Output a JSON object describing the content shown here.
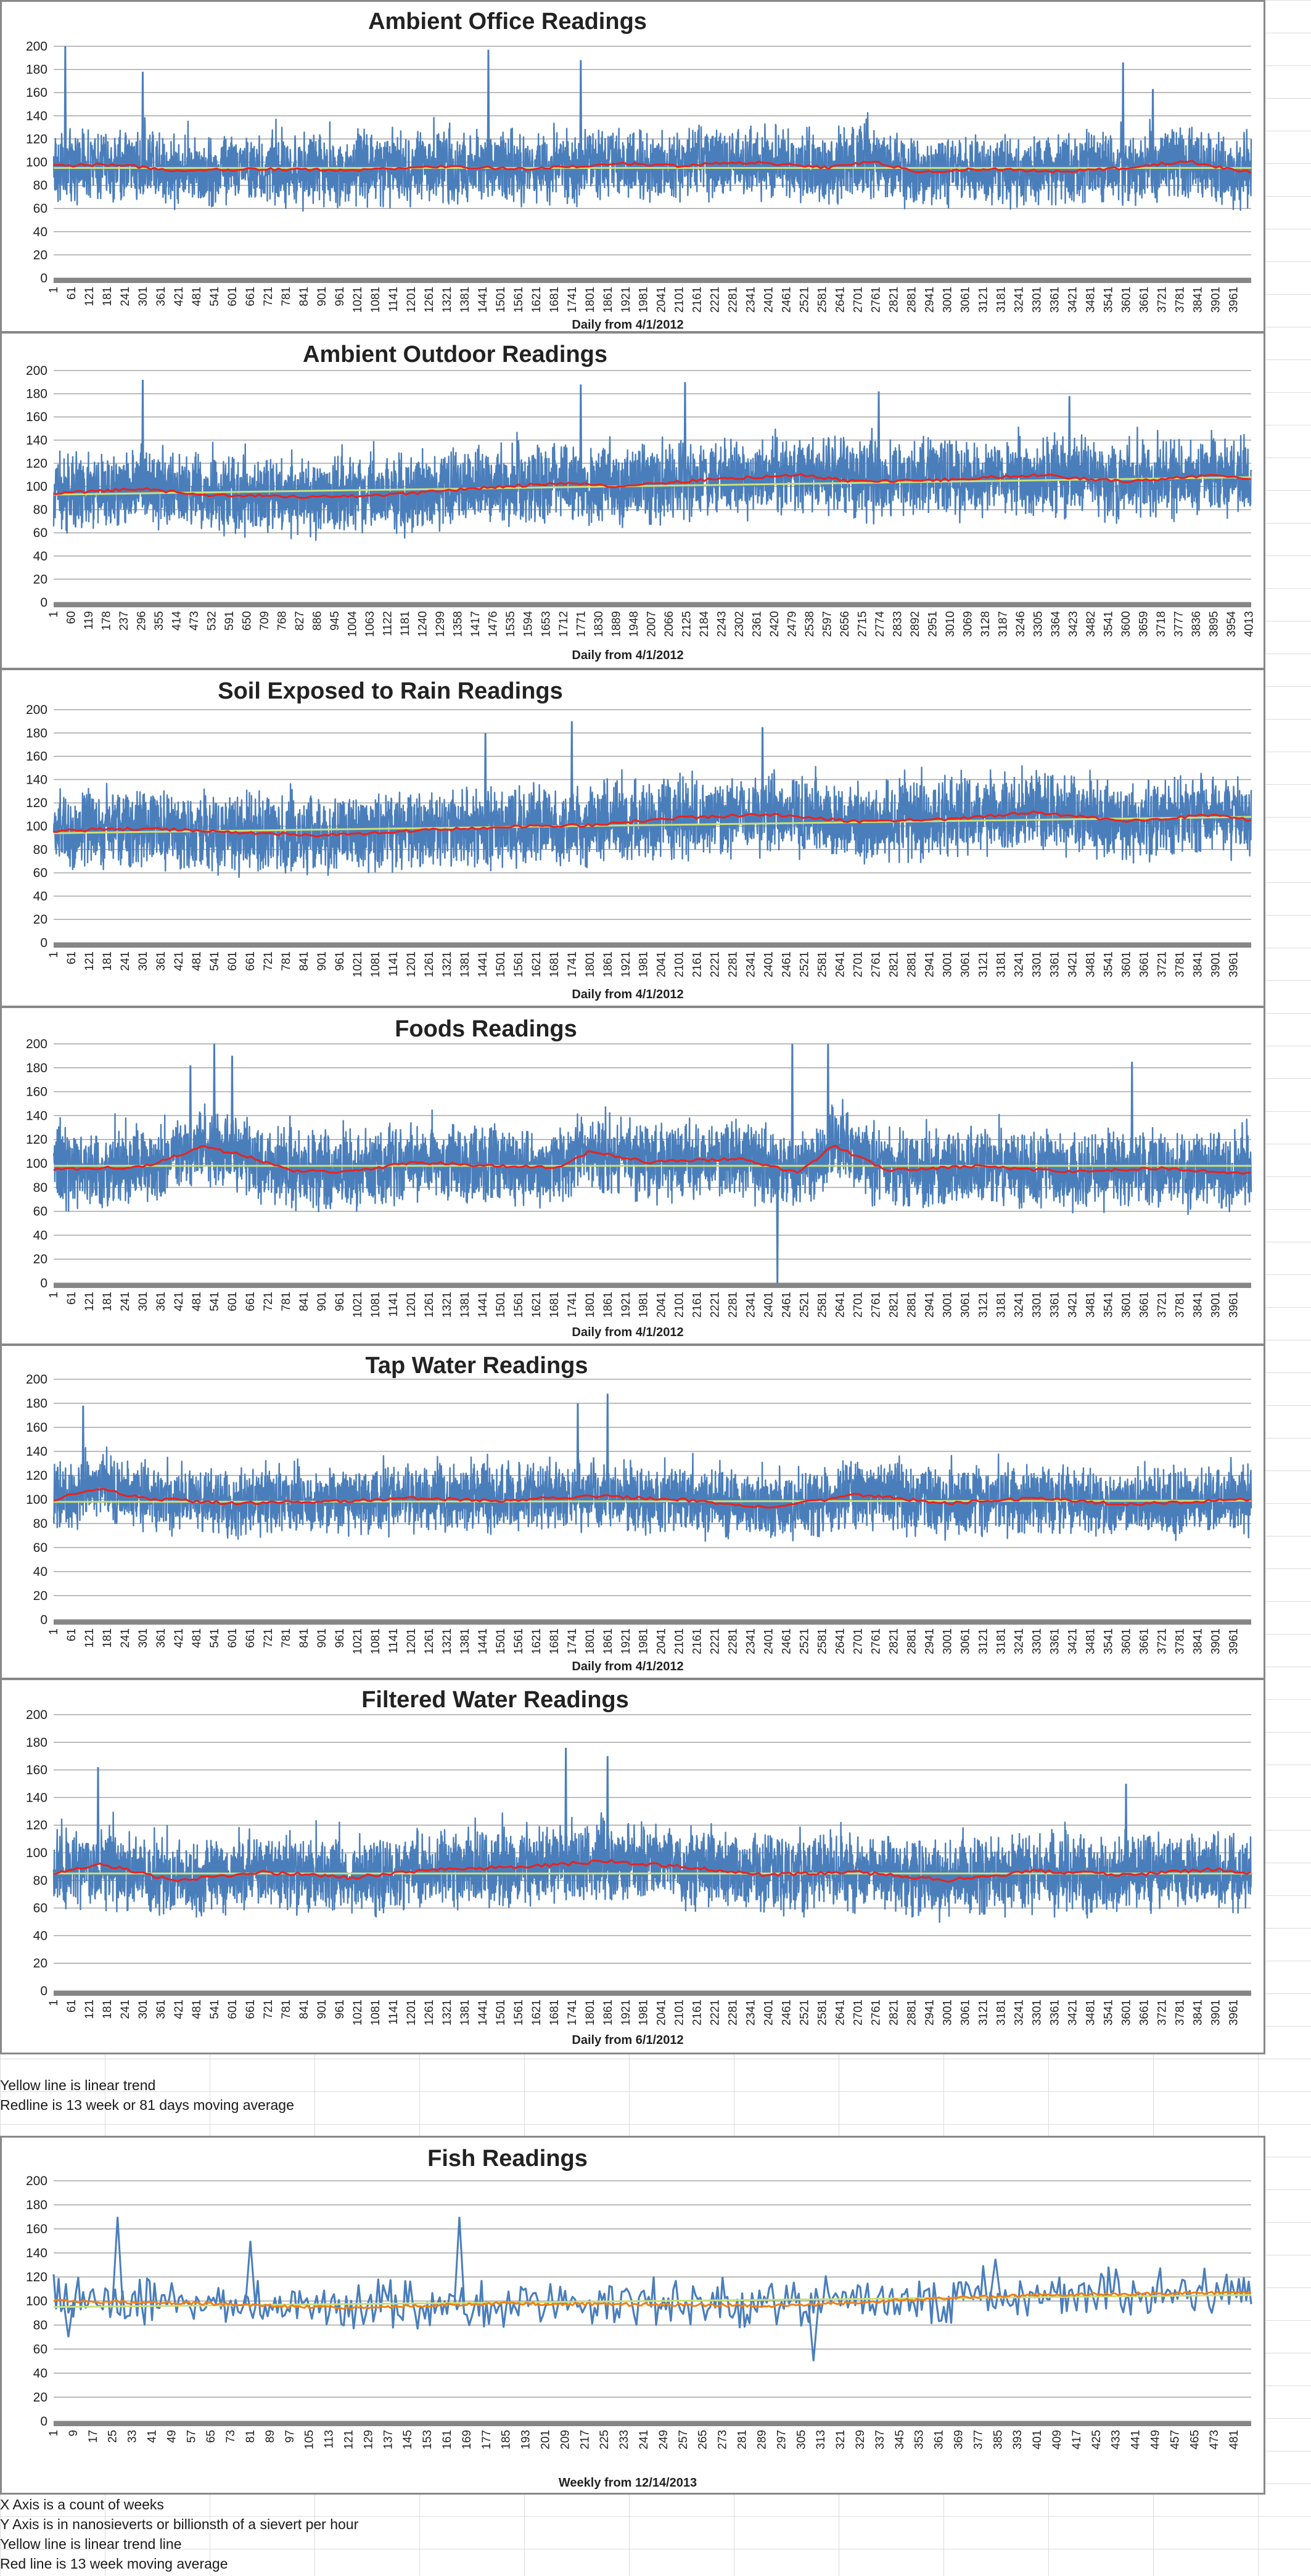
{
  "colors": {
    "series": "#4a7ebb",
    "moving_average": "#e8231f",
    "fish_moving_average": "#f08018",
    "trend": "#c9e07a",
    "grid": "#a6a6a6",
    "axis": "#868686"
  },
  "chart_data": [
    {
      "type": "line",
      "title": "Ambient Office Readings",
      "xlabel": "Daily from 4/1/2012",
      "ylim": [
        0,
        200
      ],
      "yticks": [
        0,
        20,
        40,
        60,
        80,
        100,
        120,
        140,
        160,
        180,
        200
      ],
      "n_points": 4020,
      "x_tick_start": 1,
      "x_tick_step": 60,
      "series_profile": {
        "mean": 95,
        "amplitude": 24,
        "spikes": [
          [
            40,
            200
          ],
          [
            300,
            178
          ],
          [
            1460,
            197
          ],
          [
            1770,
            188
          ],
          [
            3590,
            186
          ],
          [
            3690,
            163
          ]
        ]
      },
      "moving_average": [
        [
          1,
          97
        ],
        [
          200,
          98
        ],
        [
          400,
          93
        ],
        [
          700,
          94
        ],
        [
          1000,
          93
        ],
        [
          1300,
          96
        ],
        [
          1600,
          94
        ],
        [
          1900,
          99
        ],
        [
          2100,
          97
        ],
        [
          2350,
          100
        ],
        [
          2600,
          95
        ],
        [
          2750,
          101
        ],
        [
          2900,
          91
        ],
        [
          3100,
          94
        ],
        [
          3400,
          92
        ],
        [
          3600,
          95
        ],
        [
          3800,
          101
        ],
        [
          4020,
          91
        ]
      ],
      "trend": [
        [
          1,
          95
        ],
        [
          4020,
          95
        ]
      ]
    },
    {
      "type": "line",
      "title": "Ambient Outdoor Readings",
      "xlabel": "Daily from 4/1/2012",
      "ylim": [
        0,
        200
      ],
      "yticks": [
        0,
        20,
        40,
        60,
        80,
        100,
        120,
        140,
        160,
        180,
        200
      ],
      "n_points": 4020,
      "x_tick_start": 1,
      "x_tick_step": 59,
      "series_profile": {
        "mean": 100,
        "amplitude": 26,
        "spikes": [
          [
            300,
            192
          ],
          [
            1770,
            188
          ],
          [
            2120,
            190
          ],
          [
            2770,
            182
          ],
          [
            3410,
            178
          ]
        ]
      },
      "moving_average": [
        [
          1,
          94
        ],
        [
          300,
          98
        ],
        [
          500,
          93
        ],
        [
          800,
          91
        ],
        [
          1100,
          92
        ],
        [
          1400,
          98
        ],
        [
          1700,
          103
        ],
        [
          1900,
          100
        ],
        [
          2200,
          106
        ],
        [
          2500,
          110
        ],
        [
          2700,
          104
        ],
        [
          3000,
          106
        ],
        [
          3300,
          110
        ],
        [
          3600,
          104
        ],
        [
          3900,
          110
        ],
        [
          4020,
          107
        ]
      ],
      "trend": [
        [
          1,
          93
        ],
        [
          4020,
          108
        ]
      ]
    },
    {
      "type": "line",
      "title": "Soil Exposed to Rain Readings",
      "xlabel": "Daily from 4/1/2012",
      "ylim": [
        0,
        200
      ],
      "yticks": [
        0,
        20,
        40,
        60,
        80,
        100,
        120,
        140,
        160,
        180,
        200
      ],
      "n_points": 4020,
      "x_tick_start": 1,
      "x_tick_step": 60,
      "series_profile": {
        "mean": 100,
        "amplitude": 26,
        "spikes": [
          [
            1740,
            190
          ],
          [
            2380,
            185
          ],
          [
            1450,
            180
          ]
        ]
      },
      "moving_average": [
        [
          1,
          96
        ],
        [
          300,
          98
        ],
        [
          600,
          95
        ],
        [
          900,
          92
        ],
        [
          1200,
          96
        ],
        [
          1500,
          99
        ],
        [
          1800,
          101
        ],
        [
          2100,
          107
        ],
        [
          2400,
          110
        ],
        [
          2700,
          104
        ],
        [
          3000,
          106
        ],
        [
          3300,
          112
        ],
        [
          3600,
          104
        ],
        [
          3900,
          110
        ],
        [
          4020,
          105
        ]
      ],
      "trend": [
        [
          1,
          94
        ],
        [
          4020,
          108
        ]
      ]
    },
    {
      "type": "line",
      "title": "Foods Readings",
      "xlabel": "Daily from 4/1/2012",
      "ylim": [
        0,
        200
      ],
      "yticks": [
        0,
        20,
        40,
        60,
        80,
        100,
        120,
        140,
        160,
        180,
        200
      ],
      "n_points": 4020,
      "x_tick_start": 1,
      "x_tick_step": 60,
      "series_profile": {
        "mean": 97,
        "amplitude": 25,
        "spikes": [
          [
            460,
            182
          ],
          [
            540,
            200
          ],
          [
            600,
            190
          ],
          [
            2480,
            200
          ],
          [
            2600,
            200
          ],
          [
            3620,
            185
          ]
        ],
        "dips": [
          [
            2430,
            0
          ]
        ]
      },
      "moving_average": [
        [
          1,
          95
        ],
        [
          300,
          97
        ],
        [
          500,
          114
        ],
        [
          650,
          106
        ],
        [
          800,
          94
        ],
        [
          1000,
          93
        ],
        [
          1200,
          101
        ],
        [
          1500,
          98
        ],
        [
          1700,
          96
        ],
        [
          1800,
          110
        ],
        [
          2000,
          101
        ],
        [
          2300,
          104
        ],
        [
          2500,
          92
        ],
        [
          2620,
          115
        ],
        [
          2800,
          94
        ],
        [
          3100,
          98
        ],
        [
          3400,
          93
        ],
        [
          3700,
          96
        ],
        [
          4020,
          92
        ]
      ],
      "trend": [
        [
          1,
          98
        ],
        [
          4020,
          98
        ]
      ]
    },
    {
      "type": "line",
      "title": "Tap Water Readings",
      "xlabel": "Daily from 4/1/2012",
      "ylim": [
        0,
        200
      ],
      "yticks": [
        0,
        20,
        40,
        60,
        80,
        100,
        120,
        140,
        160,
        180,
        200
      ],
      "n_points": 4020,
      "x_tick_start": 1,
      "x_tick_step": 60,
      "series_profile": {
        "mean": 99,
        "amplitude": 22,
        "spikes": [
          [
            100,
            178
          ],
          [
            1860,
            188
          ],
          [
            1760,
            180
          ]
        ]
      },
      "moving_average": [
        [
          1,
          100
        ],
        [
          150,
          109
        ],
        [
          300,
          101
        ],
        [
          600,
          97
        ],
        [
          900,
          98
        ],
        [
          1200,
          101
        ],
        [
          1500,
          99
        ],
        [
          1800,
          103
        ],
        [
          2100,
          100
        ],
        [
          2400,
          93
        ],
        [
          2700,
          104
        ],
        [
          3000,
          97
        ],
        [
          3300,
          101
        ],
        [
          3600,
          96
        ],
        [
          4020,
          100
        ]
      ],
      "trend": [
        [
          1,
          98
        ],
        [
          4020,
          99
        ]
      ]
    },
    {
      "type": "line",
      "title": "Filtered Water Readings",
      "xlabel": "Daily from 6/1/2012",
      "ylim": [
        0,
        200
      ],
      "yticks": [
        0,
        20,
        40,
        60,
        80,
        100,
        120,
        140,
        160,
        180,
        200
      ],
      "n_points": 4020,
      "x_tick_start": 1,
      "x_tick_step": 60,
      "series_profile": {
        "mean": 86,
        "amplitude": 22,
        "spikes": [
          [
            150,
            162
          ],
          [
            1720,
            176
          ],
          [
            1860,
            170
          ],
          [
            3600,
            150
          ]
        ]
      },
      "moving_average": [
        [
          1,
          84
        ],
        [
          150,
          92
        ],
        [
          400,
          80
        ],
        [
          700,
          86
        ],
        [
          1000,
          82
        ],
        [
          1300,
          88
        ],
        [
          1600,
          90
        ],
        [
          1850,
          94
        ],
        [
          2100,
          90
        ],
        [
          2400,
          84
        ],
        [
          2700,
          86
        ],
        [
          3000,
          80
        ],
        [
          3300,
          87
        ],
        [
          3600,
          84
        ],
        [
          3900,
          88
        ],
        [
          4020,
          85
        ]
      ],
      "trend": [
        [
          1,
          85
        ],
        [
          4020,
          85
        ]
      ]
    },
    {
      "type": "line",
      "title": "Fish Readings",
      "xlabel": "Weekly from 12/14/2013",
      "ylim": [
        0,
        200
      ],
      "yticks": [
        0,
        20,
        40,
        60,
        80,
        100,
        120,
        140,
        160,
        180,
        200
      ],
      "n_points": 488,
      "x_tick_start": 1,
      "x_tick_step": 8,
      "series_profile": {
        "mean": 100,
        "amplitude": 16,
        "spikes": [
          [
            27,
            170
          ],
          [
            166,
            170
          ],
          [
            81,
            150
          ],
          [
            384,
            135
          ]
        ],
        "dips": [
          [
            7,
            70
          ],
          [
            310,
            50
          ]
        ]
      },
      "moving_average": [
        [
          1,
          100
        ],
        [
          60,
          98
        ],
        [
          120,
          94
        ],
        [
          180,
          98
        ],
        [
          240,
          97
        ],
        [
          300,
          96
        ],
        [
          360,
          102
        ],
        [
          400,
          105
        ],
        [
          440,
          106
        ],
        [
          488,
          107
        ]
      ],
      "trend": [
        [
          1,
          95
        ],
        [
          488,
          105
        ]
      ]
    }
  ],
  "notes_top": [
    "Yellow line is linear trend",
    "Redline is 13 week or 81 days moving average"
  ],
  "notes_bottom": [
    "X Axis is a count of weeks",
    "Y Axis is in nanosieverts or billionsth of a sievert per hour",
    "Yellow line is linear trend line",
    "Red line is 13 week moving average"
  ]
}
